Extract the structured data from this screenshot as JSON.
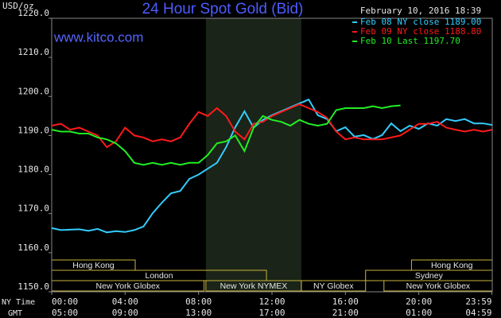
{
  "chart_data": {
    "type": "line",
    "title": "24 Hour Spot Gold (Bid)",
    "subtitle": "February 10, 2016 18:39",
    "watermark": "www.kitco.com",
    "y_label": "USD/oz",
    "x_label": "NY Time",
    "x2_label": "GMT",
    "x": [
      0,
      0.5,
      1,
      1.5,
      2,
      2.5,
      3,
      3.5,
      4,
      4.5,
      5,
      5.5,
      6,
      6.5,
      7,
      7.5,
      8,
      8.5,
      9,
      9.5,
      10,
      10.5,
      11,
      11.5,
      12,
      12.5,
      13,
      13.5,
      14,
      14.5,
      15,
      15.5,
      16,
      16.5,
      17,
      17.5,
      18,
      18.5,
      19,
      19.5,
      20,
      20.5,
      21,
      21.5,
      22,
      22.5,
      23,
      23.5,
      24
    ],
    "series": [
      {
        "name": "Feb 08 NY close 1189.00",
        "color": "#33ccff",
        "values": [
          1166.3,
          1165.8,
          1165.9,
          1166.0,
          1165.6,
          1166.1,
          1165.2,
          1165.5,
          1165.3,
          1165.8,
          1166.7,
          1170.1,
          1172.8,
          1175.2,
          1175.8,
          1178.9,
          1180,
          1181.5,
          1183,
          1187,
          1192.1,
          1196.2,
          1192,
          1194,
          1195.2,
          1196.2,
          1197.2,
          1198.2,
          1199.2,
          1195.2,
          1194.2,
          1191.1,
          1192.1,
          1189.7,
          1190.1,
          1189.1,
          1190.1,
          1193.1,
          1191.1,
          1192.5,
          1191.7,
          1193.1,
          1192.5,
          1194.2,
          1193.7,
          1194.2,
          1193.1,
          1193.1,
          1192.7
        ]
      },
      {
        "name": "Feb 09 NY close 1188.80",
        "color": "#ff1a1a",
        "values": [
          1192.5,
          1193,
          1191.5,
          1192,
          1191,
          1190,
          1187,
          1188.5,
          1192,
          1190,
          1189.5,
          1188.5,
          1189,
          1188.5,
          1189.5,
          1193,
          1196,
          1195,
          1197,
          1195,
          1191,
          1189,
          1193,
          1193.5,
          1195,
          1196,
          1197,
          1198,
          1197,
          1196,
          1194.5,
          1191,
          1189,
          1189.5,
          1189,
          1189,
          1189,
          1189.5,
          1190,
          1191.5,
          1193,
          1193,
          1193.5,
          1192,
          1191.5,
          1191,
          1191.5,
          1191,
          1191.5
        ]
      },
      {
        "name": "Feb 10 Last 1197.70",
        "color": "#22ee22",
        "values": [
          1191.5,
          1191,
          1191,
          1190.5,
          1190.5,
          1189.5,
          1189,
          1188,
          1186,
          1183,
          1182.5,
          1183,
          1182.5,
          1183,
          1182.5,
          1183,
          1183,
          1185,
          1188,
          1188.5,
          1190,
          1186,
          1192,
          1195,
          1194,
          1193.5,
          1192.5,
          1194,
          1193,
          1192.5,
          1193,
          1196.5,
          1197,
          1197,
          1197,
          1197.5,
          1197,
          1197.5,
          1197.7,
          null,
          null,
          null,
          null,
          null,
          null,
          null,
          null,
          null,
          null
        ]
      }
    ],
    "xlim": [
      0,
      24
    ],
    "xticks": [
      {
        "value": 0,
        "label": "00:00"
      },
      {
        "value": 4,
        "label": "04:00"
      },
      {
        "value": 8,
        "label": "08:00"
      },
      {
        "value": 12,
        "label": "12:00"
      },
      {
        "value": 16,
        "label": "16:00"
      },
      {
        "value": 20,
        "label": "20:00"
      },
      {
        "value": 23.98,
        "label": "23:59"
      }
    ],
    "x2ticklabels": [
      "05:00",
      "09:00",
      "13:00",
      "17:00",
      "21:00",
      "01:00",
      "04:59"
    ],
    "ylim": [
      1150,
      1220
    ],
    "yticks": [
      {
        "value": 1150,
        "label": "1150.0"
      },
      {
        "value": 1160,
        "label": "1160.0"
      },
      {
        "value": 1170,
        "label": "1170.0"
      },
      {
        "value": 1180,
        "label": "1180.0"
      },
      {
        "value": 1190,
        "label": "1190.0"
      },
      {
        "value": 1200,
        "label": "1200.0"
      },
      {
        "value": 1210,
        "label": "1210.0"
      },
      {
        "value": 1220,
        "label": "1220.0"
      }
    ],
    "shaded_region": [
      8.4,
      13.6
    ],
    "sessions": [
      {
        "name": "Hong Kong",
        "row": 1,
        "start": 0,
        "end": 4.55
      },
      {
        "name": "London",
        "row": 2,
        "start": 0,
        "end": 11.7
      },
      {
        "name": "New York Globex",
        "row": 3,
        "start": 0,
        "end": 8.3
      },
      {
        "name": "New York NYMEX",
        "row": 3,
        "start": 8.4,
        "end": 13.6
      },
      {
        "name": "NY Globex",
        "row": 3,
        "start": 13.6,
        "end": 17.1
      },
      {
        "name": "Hong Kong",
        "row": 1,
        "start": 19.6,
        "end": 24
      },
      {
        "name": "Sydney",
        "row": 2,
        "start": 17.1,
        "end": 24
      },
      {
        "name": "New York Globex",
        "row": 3,
        "start": 18.1,
        "end": 24
      }
    ]
  }
}
